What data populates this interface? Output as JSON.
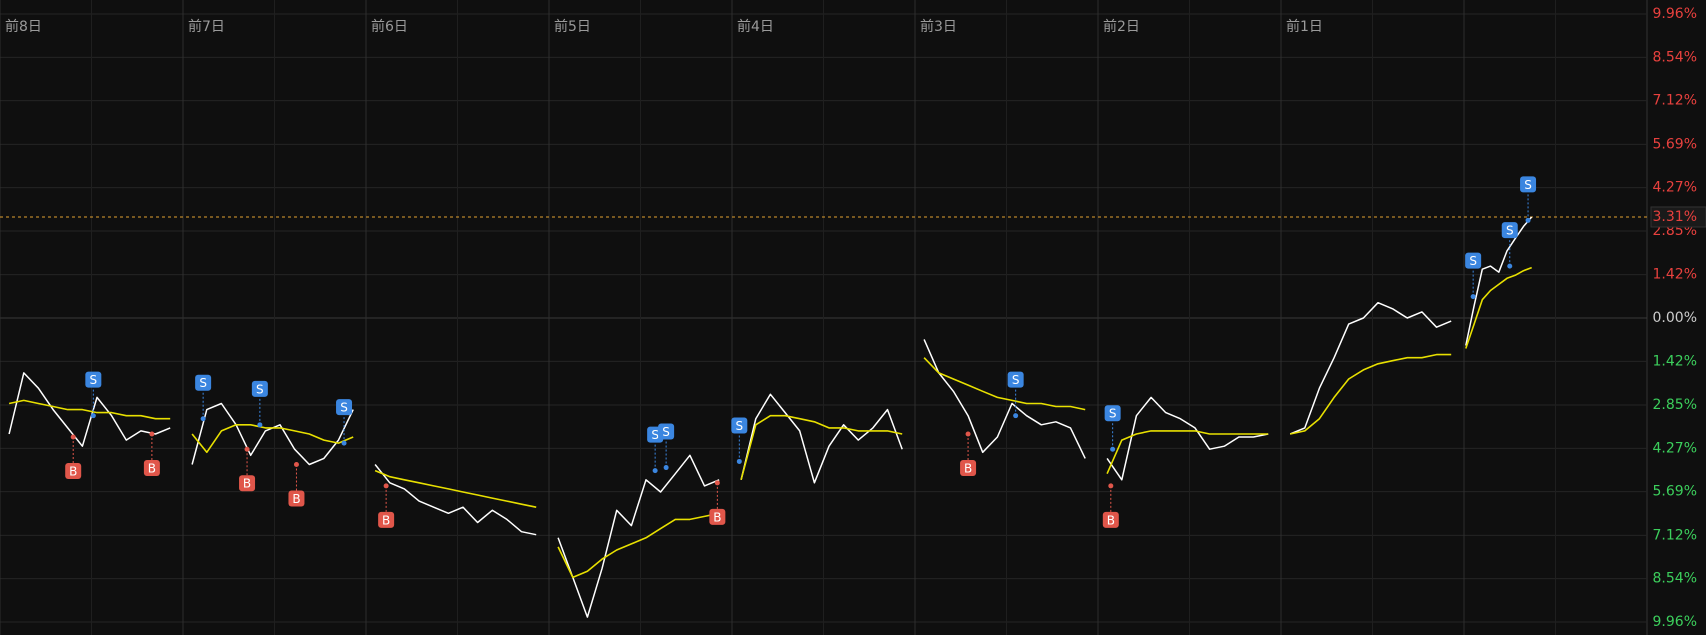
{
  "chart_data": {
    "type": "line",
    "xlim": [
      -8,
      1
    ],
    "ylim": [
      -9.96,
      9.96
    ],
    "xticks": [
      {
        "value": -8,
        "label": "前8日"
      },
      {
        "value": -7,
        "label": "前7日"
      },
      {
        "value": -6,
        "label": "前6日"
      },
      {
        "value": -5,
        "label": "前5日"
      },
      {
        "value": -4,
        "label": "前4日"
      },
      {
        "value": -3,
        "label": "前3日"
      },
      {
        "value": -2,
        "label": "前2日"
      },
      {
        "value": -1,
        "label": "前1日"
      }
    ],
    "yticks": [
      {
        "value": 9.96,
        "label": "9.96%"
      },
      {
        "value": 8.54,
        "label": "8.54%"
      },
      {
        "value": 7.12,
        "label": "7.12%"
      },
      {
        "value": 5.69,
        "label": "5.69%"
      },
      {
        "value": 4.27,
        "label": "4.27%"
      },
      {
        "value": 2.85,
        "label": "2.85%"
      },
      {
        "value": 1.42,
        "label": "1.42%"
      },
      {
        "value": 0,
        "label": "0.00%"
      },
      {
        "value": -1.42,
        "label": "1.42%"
      },
      {
        "value": -2.85,
        "label": "2.85%"
      },
      {
        "value": -4.27,
        "label": "4.27%"
      },
      {
        "value": -5.69,
        "label": "5.69%"
      },
      {
        "value": -7.12,
        "label": "7.12%"
      },
      {
        "value": -8.54,
        "label": "8.54%"
      },
      {
        "value": -9.96,
        "label": "9.96%"
      }
    ],
    "grid": true,
    "up_color": "#e8413e",
    "down_color": "#3ccf5c",
    "flat_color": "#cccccc",
    "x": [
      -7.95,
      -7.87,
      -7.79,
      -7.71,
      -7.63,
      -7.55,
      -7.47,
      -7.39,
      -7.31,
      -7.23,
      -7.15,
      -7.07,
      -7,
      -6.95,
      -6.87,
      -6.79,
      -6.71,
      -6.63,
      -6.55,
      -6.47,
      -6.39,
      -6.31,
      -6.23,
      -6.15,
      -6.07,
      -6,
      -5.95,
      -5.87,
      -5.79,
      -5.71,
      -5.63,
      -5.55,
      -5.47,
      -5.39,
      -5.31,
      -5.23,
      -5.15,
      -5.07,
      -5,
      -4.95,
      -4.87,
      -4.79,
      -4.71,
      -4.63,
      -4.55,
      -4.47,
      -4.39,
      -4.31,
      -4.23,
      -4.15,
      -4.07,
      -4,
      -3.95,
      -3.87,
      -3.79,
      -3.71,
      -3.63,
      -3.55,
      -3.47,
      -3.39,
      -3.31,
      -3.23,
      -3.15,
      -3.07,
      -3,
      -2.95,
      -2.87,
      -2.79,
      -2.71,
      -2.63,
      -2.55,
      -2.47,
      -2.39,
      -2.31,
      -2.23,
      -2.15,
      -2.07,
      -2,
      -1.95,
      -1.87,
      -1.79,
      -1.71,
      -1.63,
      -1.55,
      -1.47,
      -1.39,
      -1.31,
      -1.23,
      -1.15,
      -1.07,
      -1,
      -0.95,
      -0.87,
      -0.79,
      -0.71,
      -0.63,
      -0.55,
      -0.47,
      -0.39,
      -0.31,
      -0.23,
      -0.15,
      -0.07,
      0,
      0.01,
      0.055,
      0.1,
      0.145,
      0.19,
      0.235,
      0.28,
      0.325,
      0.37
    ],
    "series": [
      {
        "color": "#ffffff",
        "values": [
          -3.8,
          -1.8,
          -2.3,
          -3.0,
          -3.6,
          -4.2,
          -2.6,
          -3.2,
          -4.0,
          -3.7,
          -3.8,
          -3.6,
          null,
          -4.8,
          -3.0,
          -2.8,
          -3.5,
          -4.5,
          -3.7,
          -3.5,
          -4.3,
          -4.8,
          -4.6,
          -4.0,
          -3.0,
          null,
          -4.8,
          -5.4,
          -5.6,
          -6.0,
          -6.2,
          -6.4,
          -6.2,
          -6.7,
          -6.3,
          -6.6,
          -7.0,
          -7.1,
          null,
          -7.2,
          -8.5,
          -9.8,
          -8.2,
          -6.3,
          -6.8,
          -5.3,
          -5.7,
          -5.1,
          -4.5,
          -5.5,
          -5.3,
          null,
          -5.3,
          -3.3,
          -2.5,
          -3.1,
          -3.7,
          -5.4,
          -4.2,
          -3.5,
          -4.0,
          -3.6,
          -3.0,
          -4.3,
          null,
          -0.7,
          -1.8,
          -2.4,
          -3.2,
          -4.4,
          -3.9,
          -2.8,
          -3.2,
          -3.5,
          -3.4,
          -3.6,
          -4.6,
          null,
          -4.6,
          -5.3,
          -3.2,
          -2.6,
          -3.1,
          -3.3,
          -3.6,
          -4.3,
          -4.2,
          -3.9,
          -3.9,
          -3.8,
          null,
          -3.8,
          -3.6,
          -2.3,
          -1.3,
          -0.2,
          0.0,
          0.5,
          0.3,
          0.0,
          0.2,
          -0.3,
          -0.1,
          null,
          -0.9,
          0.4,
          1.6,
          1.7,
          1.5,
          2.2,
          2.6,
          3.0,
          3.31
        ]
      },
      {
        "color": "#e8e000",
        "values": [
          -2.8,
          -2.7,
          -2.8,
          -2.9,
          -3.0,
          -3.0,
          -3.1,
          -3.1,
          -3.2,
          -3.2,
          -3.3,
          -3.3,
          null,
          -3.8,
          -4.4,
          -3.7,
          -3.5,
          -3.5,
          -3.6,
          -3.6,
          -3.7,
          -3.8,
          -4.0,
          -4.1,
          -3.9,
          null,
          -5.0,
          -5.2,
          -5.3,
          -5.4,
          -5.5,
          -5.6,
          -5.7,
          -5.8,
          -5.9,
          -6.0,
          -6.1,
          -6.2,
          null,
          -7.5,
          -8.5,
          -8.3,
          -7.9,
          -7.6,
          -7.4,
          -7.2,
          -6.9,
          -6.6,
          -6.6,
          -6.5,
          -6.4,
          null,
          -5.3,
          -3.5,
          -3.2,
          -3.2,
          -3.3,
          -3.4,
          -3.6,
          -3.6,
          -3.7,
          -3.7,
          -3.7,
          -3.8,
          null,
          -1.3,
          -1.8,
          -2.0,
          -2.2,
          -2.4,
          -2.6,
          -2.7,
          -2.8,
          -2.8,
          -2.9,
          -2.9,
          -3.0,
          null,
          -5.1,
          -4.0,
          -3.8,
          -3.7,
          -3.7,
          -3.7,
          -3.7,
          -3.8,
          -3.8,
          -3.8,
          -3.8,
          -3.8,
          null,
          -3.8,
          -3.7,
          -3.3,
          -2.6,
          -2.0,
          -1.7,
          -1.5,
          -1.4,
          -1.3,
          -1.3,
          -1.2,
          -1.2,
          null,
          -1.0,
          -0.2,
          0.6,
          0.9,
          1.1,
          1.3,
          1.4,
          1.55,
          1.65
        ]
      }
    ],
    "markers": [
      {
        "label": "S",
        "x": -7.49,
        "value": -3.2,
        "color": "#3b86e0"
      },
      {
        "label": "S",
        "x": -6.89,
        "value": -3.3,
        "color": "#3b86e0"
      },
      {
        "label": "S",
        "x": -6.58,
        "value": -3.5,
        "color": "#3b86e0"
      },
      {
        "label": "S",
        "x": -6.12,
        "value": -4.1,
        "color": "#3b86e0"
      },
      {
        "label": "S",
        "x": -4.42,
        "value": -5.0,
        "color": "#3b86e0"
      },
      {
        "label": "S",
        "x": -4.36,
        "value": -4.9,
        "color": "#3b86e0"
      },
      {
        "label": "S",
        "x": -3.96,
        "value": -4.7,
        "color": "#3b86e0"
      },
      {
        "label": "S",
        "x": -2.45,
        "value": -3.2,
        "color": "#3b86e0"
      },
      {
        "label": "S",
        "x": -1.92,
        "value": -4.3,
        "color": "#3b86e0"
      },
      {
        "label": "S",
        "x": 0.05,
        "value": 0.7,
        "color": "#3b86e0"
      },
      {
        "label": "S",
        "x": 0.25,
        "value": 1.7,
        "color": "#3b86e0"
      },
      {
        "label": "S",
        "x": 0.35,
        "value": 3.2,
        "color": "#3b86e0"
      },
      {
        "label": "B",
        "x": -7.6,
        "value": -3.9,
        "color": "#e0564a"
      },
      {
        "label": "B",
        "x": -7.17,
        "value": -3.8,
        "color": "#e0564a"
      },
      {
        "label": "B",
        "x": -6.65,
        "value": -4.3,
        "color": "#e0564a"
      },
      {
        "label": "B",
        "x": -6.38,
        "value": -4.8,
        "color": "#e0564a"
      },
      {
        "label": "B",
        "x": -5.89,
        "value": -5.5,
        "color": "#e0564a"
      },
      {
        "label": "B",
        "x": -4.08,
        "value": -5.4,
        "color": "#e0564a"
      },
      {
        "label": "B",
        "x": -2.71,
        "value": -3.8,
        "color": "#e0564a"
      },
      {
        "label": "B",
        "x": -1.93,
        "value": -5.5,
        "color": "#e0564a"
      }
    ],
    "current": {
      "value": 3.31,
      "label": "3.31%",
      "color": "#e0a030"
    }
  }
}
